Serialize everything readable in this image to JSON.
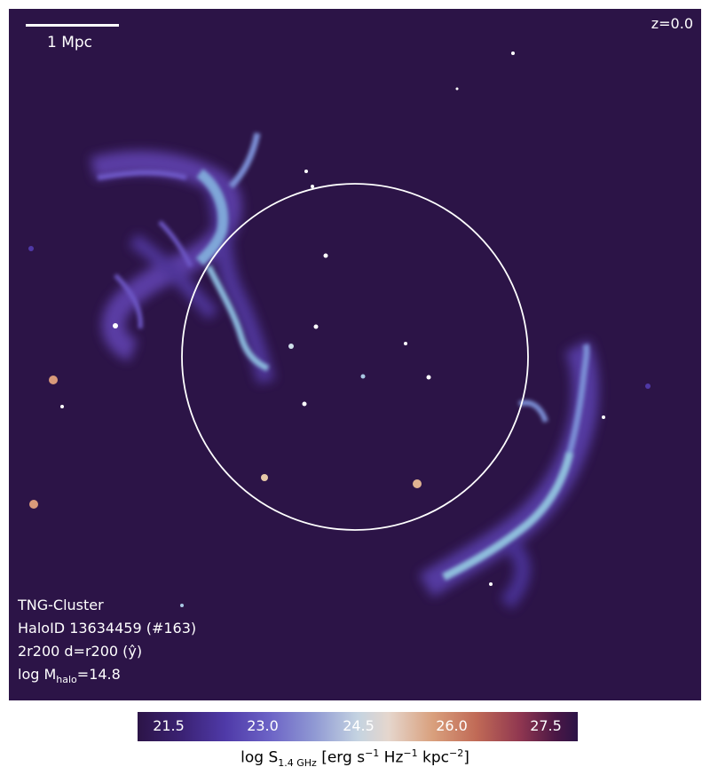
{
  "scale_bar": {
    "label": "1 Mpc"
  },
  "redshift": "z=0.0",
  "info": {
    "simulation": "TNG-Cluster",
    "halo_id": "HaloID 13634459 (#163)",
    "view": "2r200 d=r200 (ŷ)",
    "mass_prefix": "log M",
    "mass_sub": "halo",
    "mass_suffix": "=14.8"
  },
  "colorbar": {
    "ticks": [
      "21.5",
      "23.0",
      "24.5",
      "26.0",
      "27.5"
    ],
    "label_prefix": "log S",
    "label_sub": "1.4 GHz",
    "label_mid": " [erg s",
    "label_sup1": "−1",
    "label_mid2": " Hz",
    "label_sup2": "−1",
    "label_mid3": " kpc",
    "label_sup3": "−2",
    "label_end": "]",
    "colormap": "twilight_shifted",
    "background_color": "#2c1447"
  }
}
